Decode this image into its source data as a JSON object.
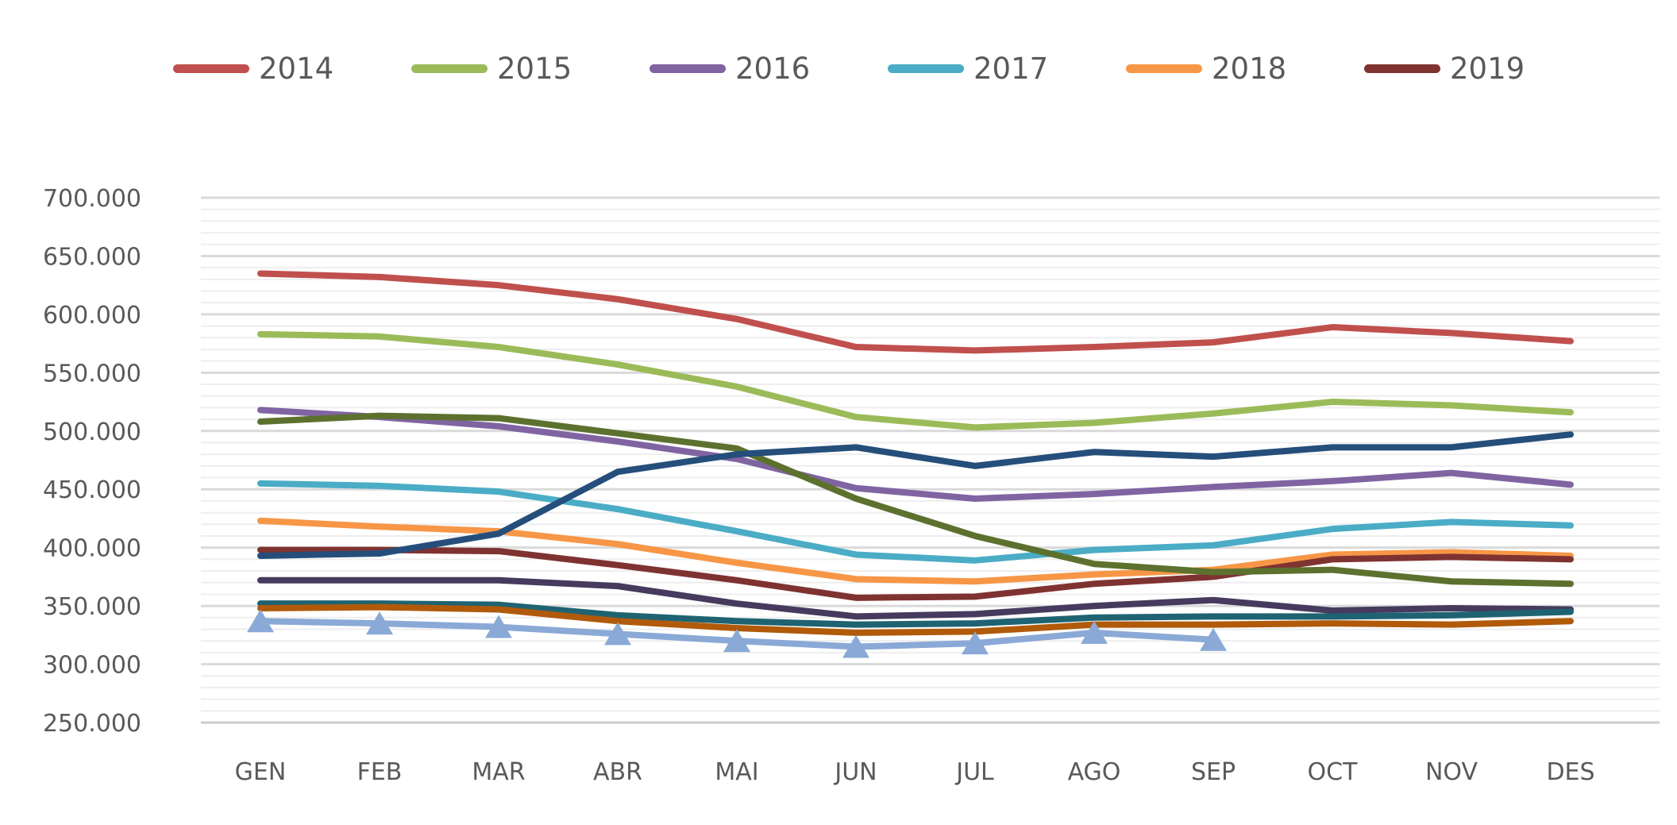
{
  "page": {
    "background": "#ffffff",
    "text_color": "#595959"
  },
  "chart_data": {
    "type": "line",
    "title": "",
    "xlabel": "",
    "ylabel": "",
    "categories": [
      "GEN",
      "FEB",
      "MAR",
      "ABR",
      "MAI",
      "JUN",
      "JUL",
      "AGO",
      "SEP",
      "OCT",
      "NOV",
      "DES"
    ],
    "y_axis": {
      "min": 250000,
      "max": 700000,
      "major_step": 50000,
      "minor_step": 10000,
      "tick_labels": [
        "700.000",
        "650.000",
        "600.000",
        "550.000",
        "500.000",
        "450.000",
        "400.000",
        "350.000",
        "300.000",
        "250.000"
      ]
    },
    "grid": {
      "show_minor": true,
      "major_color": "#dadada",
      "minor_color": "#eeeeee",
      "baseline_color": "#cccccc"
    },
    "legend": {
      "position": "top",
      "entries": [
        {
          "label": "2014",
          "color": "#c0504d"
        },
        {
          "label": "2015",
          "color": "#9bbb59"
        },
        {
          "label": "2016",
          "color": "#8064a2"
        },
        {
          "label": "2017",
          "color": "#4bacc6"
        },
        {
          "label": "2018",
          "color": "#f79646"
        },
        {
          "label": "2019",
          "color": "#7f3331"
        }
      ]
    },
    "series": [
      {
        "name": "2014",
        "color": "#c0504d",
        "in_legend": true,
        "marker": "none",
        "values": [
          635000,
          632000,
          625000,
          613000,
          596000,
          572000,
          569000,
          572000,
          576000,
          589000,
          584000,
          577000
        ]
      },
      {
        "name": "2015",
        "color": "#9bbb59",
        "in_legend": true,
        "marker": "none",
        "values": [
          583000,
          581000,
          572000,
          557000,
          538000,
          512000,
          503000,
          507000,
          515000,
          525000,
          522000,
          516000
        ]
      },
      {
        "name": "2016",
        "color": "#8064a2",
        "in_legend": true,
        "marker": "none",
        "values": [
          518000,
          512000,
          504000,
          491000,
          476000,
          451000,
          442000,
          446000,
          452000,
          457000,
          464000,
          454000
        ]
      },
      {
        "name": "2017",
        "color": "#4bacc6",
        "in_legend": true,
        "marker": "none",
        "values": [
          455000,
          453000,
          448000,
          433000,
          414000,
          394000,
          389000,
          398000,
          402000,
          416000,
          422000,
          419000
        ]
      },
      {
        "name": "2018",
        "color": "#f79646",
        "in_legend": true,
        "marker": "none",
        "values": [
          423000,
          418000,
          414000,
          403000,
          387000,
          373000,
          371000,
          377000,
          381000,
          394000,
          396000,
          393000
        ]
      },
      {
        "name": "2019",
        "color": "#7f3331",
        "in_legend": true,
        "marker": "none",
        "values": [
          398000,
          398000,
          397000,
          385000,
          372000,
          357000,
          358000,
          369000,
          375000,
          390000,
          392000,
          390000
        ]
      },
      {
        "name": "unlabeled-dark-olive",
        "color": "#5d712f",
        "in_legend": false,
        "marker": "none",
        "values": [
          508000,
          513000,
          511000,
          498000,
          485000,
          442000,
          410000,
          386000,
          379000,
          381000,
          371000,
          369000
        ]
      },
      {
        "name": "unlabeled-navy",
        "color": "#254e7b",
        "in_legend": false,
        "marker": "none",
        "values": [
          393000,
          395000,
          412000,
          465000,
          480000,
          486000,
          470000,
          482000,
          478000,
          486000,
          486000,
          497000
        ]
      },
      {
        "name": "unlabeled-dark-purple",
        "color": "#463b5e",
        "in_legend": false,
        "marker": "none",
        "values": [
          372000,
          372000,
          372000,
          367000,
          352000,
          341000,
          343000,
          350000,
          355000,
          346000,
          348000,
          347000
        ]
      },
      {
        "name": "unlabeled-dark-teal",
        "color": "#1f6372",
        "in_legend": false,
        "marker": "none",
        "values": [
          352000,
          352000,
          351000,
          342000,
          337000,
          334000,
          335000,
          340000,
          341000,
          341000,
          342000,
          345000
        ]
      },
      {
        "name": "unlabeled-dark-orange",
        "color": "#b05a0a",
        "in_legend": false,
        "marker": "none",
        "values": [
          348000,
          349000,
          347000,
          337000,
          331000,
          327000,
          328000,
          334000,
          334000,
          335000,
          334000,
          337000
        ]
      },
      {
        "name": "unlabeled-light-blue",
        "color": "#8aa9d6",
        "in_legend": false,
        "marker": "triangle",
        "values": [
          337000,
          335000,
          332000,
          326000,
          320000,
          315000,
          318000,
          327000,
          321000
        ]
      }
    ]
  }
}
